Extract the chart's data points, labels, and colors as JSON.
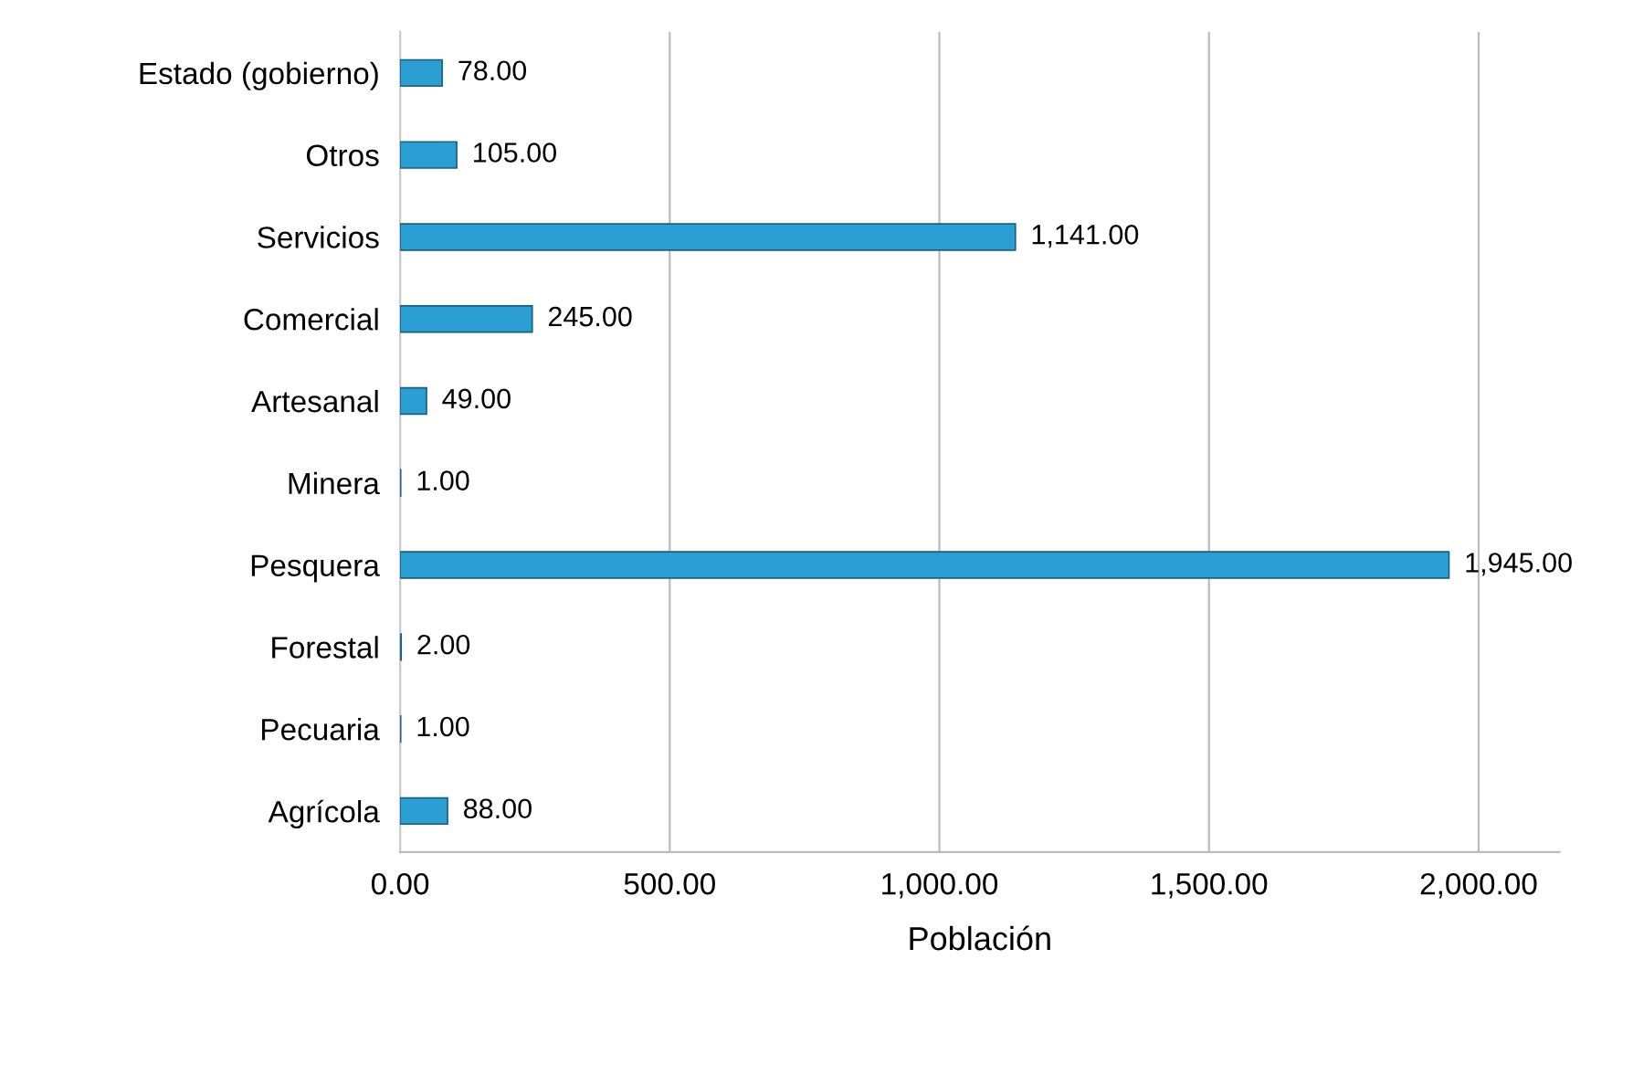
{
  "chart_data": {
    "type": "bar",
    "orientation": "horizontal",
    "categories": [
      "Estado (gobierno)",
      "Otros",
      "Servicios",
      "Comercial",
      "Artesanal",
      "Minera",
      "Pesquera",
      "Forestal",
      "Pecuaria",
      "Agrícola"
    ],
    "values": [
      78,
      105,
      1141,
      245,
      49,
      1,
      1945,
      2,
      1,
      88
    ],
    "value_labels": [
      "78.00",
      "105.00",
      "1,141.00",
      "245.00",
      "49.00",
      "1.00",
      "1,945.00",
      "2.00",
      "1.00",
      "88.00"
    ],
    "color": "#2b9fd3",
    "xlabel": "Población",
    "xlim": [
      0,
      2150
    ],
    "xticks": [
      {
        "value": 0,
        "label": "0.00"
      },
      {
        "value": 500,
        "label": "500.00"
      },
      {
        "value": 1000,
        "label": "1,000.00"
      },
      {
        "value": 1500,
        "label": "1,500.00"
      },
      {
        "value": 2000,
        "label": "2,000.00"
      }
    ],
    "grid": "x",
    "legend": false
  }
}
